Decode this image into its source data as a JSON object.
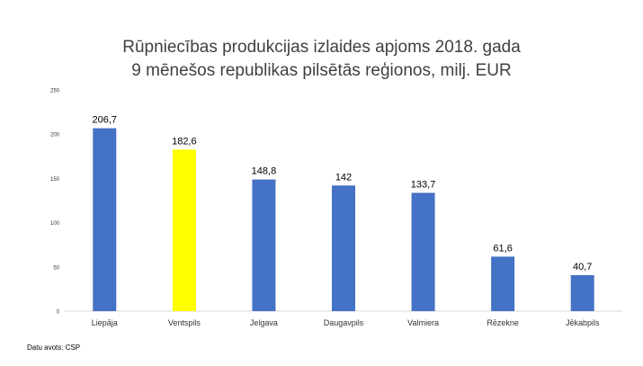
{
  "chart_data": {
    "type": "bar",
    "title_line1": "Rūpniecības produkcijas izlaides apjoms 2018. gada",
    "title_line2": "9 mēnešos republikas pilsētās reģionos, milj. EUR",
    "categories": [
      "Liepāja",
      "Ventspils",
      "Jelgava",
      "Daugavpils",
      "Valmiera",
      "Rēzekne",
      "Jēkabpils"
    ],
    "values": [
      206.7,
      182.6,
      148.8,
      142,
      133.7,
      61.6,
      40.7
    ],
    "data_labels": [
      "206,7",
      "182,6",
      "148,8",
      "142",
      "133,7",
      "61,6",
      "40,7"
    ],
    "bar_colors": [
      "#4472c4",
      "#ffff00",
      "#4472c4",
      "#4472c4",
      "#4472c4",
      "#4472c4",
      "#4472c4"
    ],
    "yticks": [
      0,
      50,
      100,
      150,
      200,
      250
    ],
    "ylim": [
      0,
      250
    ],
    "grid": false,
    "legend": "none"
  },
  "footer": {
    "source": "Datu avots: CSP"
  }
}
